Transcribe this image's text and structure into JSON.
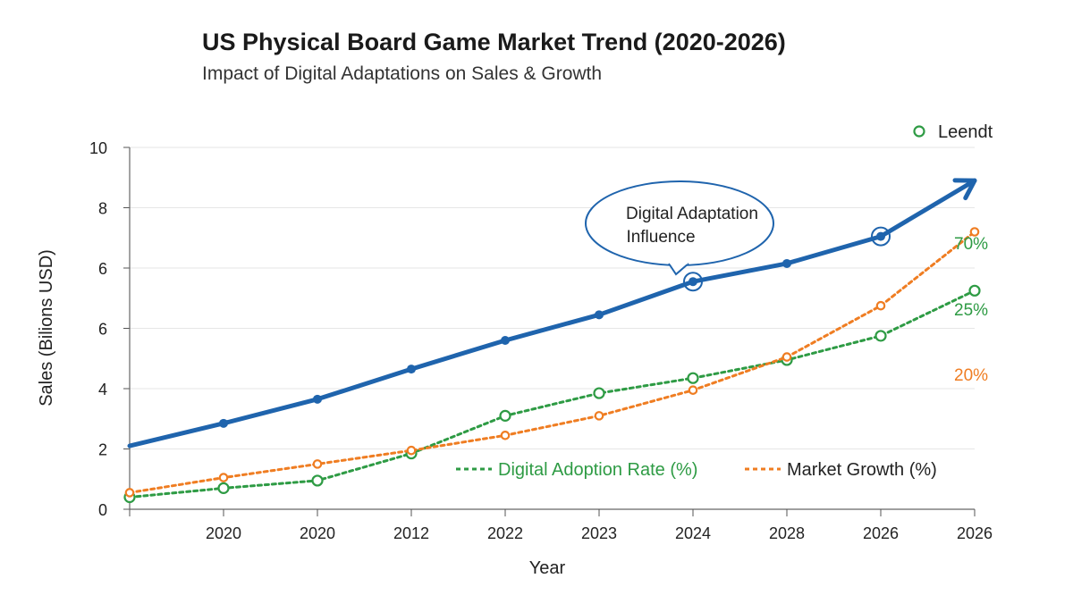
{
  "chart_data": {
    "type": "line",
    "title": "US Physical Board Game Market Trend (2020-2026)",
    "subtitle": "Impact of Digital Adaptations on Sales & Growth",
    "xlabel": "Year",
    "ylabel": "Sales (Bilions USD)",
    "categories": [
      "",
      "2020",
      "2020",
      "2012",
      "2022",
      "2023",
      "2024",
      "2028",
      "2026",
      "2026"
    ],
    "y_ticks": [
      "0",
      "2",
      "4",
      "6",
      "6",
      "8",
      "10"
    ],
    "ylim": [
      0,
      12
    ],
    "grid": "horizontal",
    "legend_placement": "top-right",
    "legend_label": "Leendt",
    "series": [
      {
        "key": "sales",
        "name": "",
        "color": "#1f64ad",
        "style": "solid-arrow",
        "values": [
          2.1,
          2.85,
          3.65,
          4.65,
          5.6,
          6.45,
          7.55,
          8.15,
          9.05,
          10.9
        ],
        "highlighted_indices": [
          6,
          8
        ]
      },
      {
        "key": "digital",
        "name": "Digital Adoption Rate (%)",
        "color": "#2e9b44",
        "style": "dotted",
        "values": [
          0.4,
          0.7,
          0.95,
          1.85,
          3.1,
          3.85,
          4.35,
          4.95,
          5.75,
          7.25
        ],
        "end_label": "25%"
      },
      {
        "key": "growth",
        "name": "Market Growth (%)",
        "color": "#ef7d22",
        "style": "dotted",
        "values": [
          0.55,
          1.05,
          1.5,
          1.95,
          2.45,
          3.1,
          3.95,
          5.05,
          6.75,
          9.2
        ],
        "end_label": "20%"
      }
    ],
    "extra_labels": [
      {
        "text": "70%",
        "color": "#2e9b44"
      }
    ],
    "annotations": [
      {
        "text_line1": "Digital Adaptation",
        "text_line2": "Influence",
        "point_index": 6,
        "series": "sales"
      }
    ]
  }
}
